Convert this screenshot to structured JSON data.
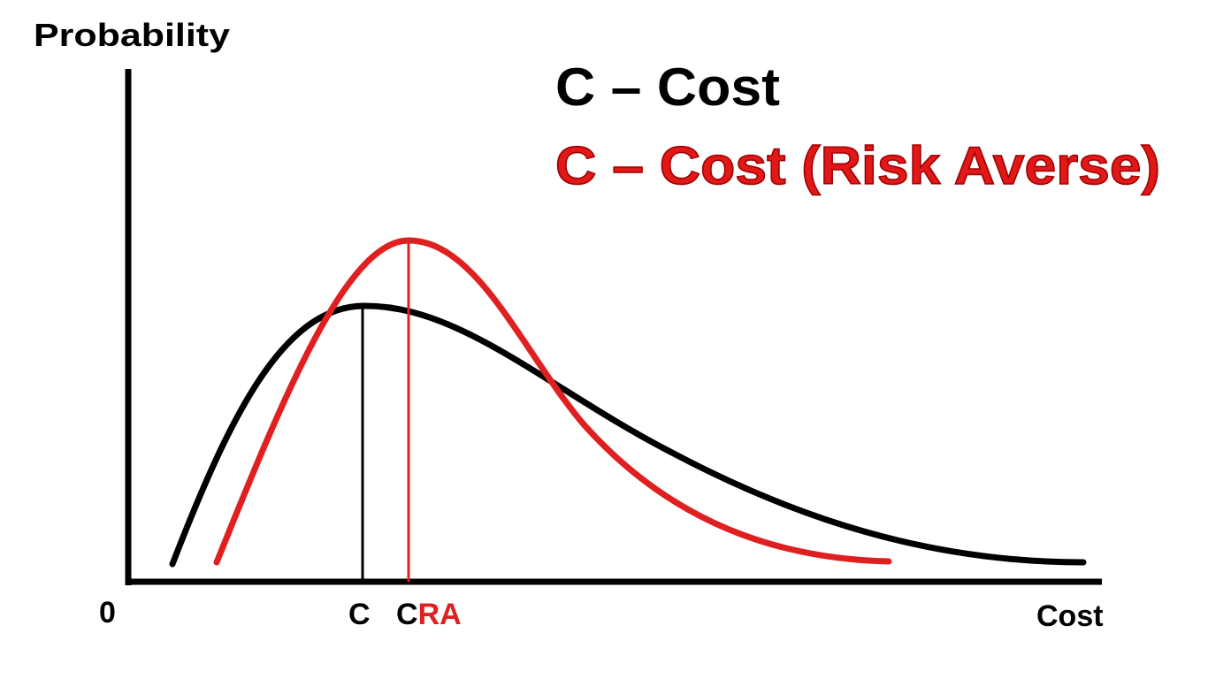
{
  "axes": {
    "y_label": "Probability",
    "x_label": "Cost",
    "origin": "0"
  },
  "markers": [
    {
      "label": "C"
    },
    {
      "label": "C",
      "suffix": "RA"
    }
  ],
  "legend": [
    {
      "label": "C – Cost"
    },
    {
      "label": "C – Cost (Risk Averse)"
    }
  ]
}
